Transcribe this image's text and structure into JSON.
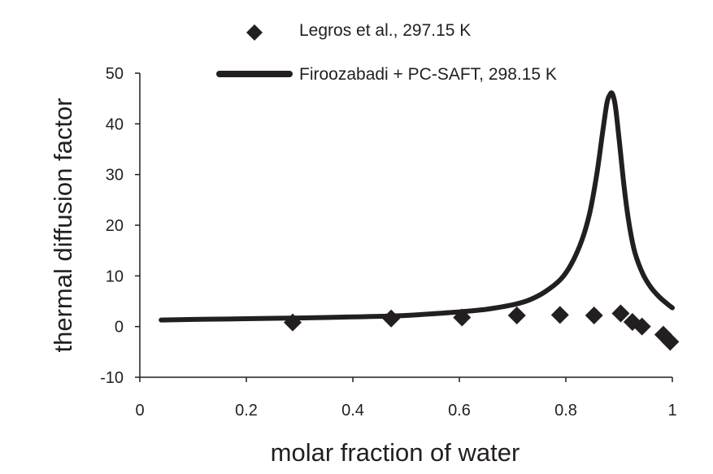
{
  "chart_data": {
    "type": "scatter",
    "xlabel": "molar fraction of water",
    "ylabel": "thermal diffusion factor",
    "xlim": [
      0,
      1
    ],
    "ylim": [
      -10,
      50
    ],
    "x_ticks": [
      "0",
      "0.2",
      "0.4",
      "0.6",
      "0.8",
      "1"
    ],
    "y_ticks": [
      "-10",
      "0",
      "10",
      "20",
      "30",
      "40",
      "50"
    ],
    "grid": false,
    "legend_position": "top",
    "series": [
      {
        "name": "Legros et al., 297.15 K",
        "kind": "scatter",
        "marker": "diamond",
        "color": "#231f20",
        "points": [
          [
            0.287,
            0.8
          ],
          [
            0.472,
            1.6
          ],
          [
            0.605,
            1.8
          ],
          [
            0.708,
            2.2
          ],
          [
            0.789,
            2.3
          ],
          [
            0.853,
            2.2
          ],
          [
            0.903,
            2.6
          ],
          [
            0.925,
            0.9
          ],
          [
            0.943,
            0.0
          ],
          [
            0.983,
            -1.6
          ],
          [
            0.996,
            -3.0
          ]
        ]
      },
      {
        "name": "Firoozabadi + PC-SAFT, 298.15 K",
        "kind": "line",
        "color": "#231f20",
        "points": [
          [
            0.04,
            1.3
          ],
          [
            0.1,
            1.4
          ],
          [
            0.2,
            1.55
          ],
          [
            0.3,
            1.7
          ],
          [
            0.4,
            1.9
          ],
          [
            0.5,
            2.2
          ],
          [
            0.6,
            2.9
          ],
          [
            0.65,
            3.4
          ],
          [
            0.7,
            4.3
          ],
          [
            0.73,
            5.2
          ],
          [
            0.76,
            6.8
          ],
          [
            0.79,
            9.3
          ],
          [
            0.81,
            12.3
          ],
          [
            0.83,
            17.0
          ],
          [
            0.845,
            22.5
          ],
          [
            0.858,
            30.0
          ],
          [
            0.868,
            37.5
          ],
          [
            0.877,
            44.0
          ],
          [
            0.882,
            45.6
          ],
          [
            0.887,
            46.0
          ],
          [
            0.893,
            43.5
          ],
          [
            0.9,
            37.0
          ],
          [
            0.91,
            27.0
          ],
          [
            0.92,
            19.5
          ],
          [
            0.93,
            14.5
          ],
          [
            0.945,
            10.3
          ],
          [
            0.96,
            7.7
          ],
          [
            0.975,
            5.9
          ],
          [
            0.99,
            4.5
          ],
          [
            1.0,
            3.7
          ]
        ]
      }
    ]
  }
}
